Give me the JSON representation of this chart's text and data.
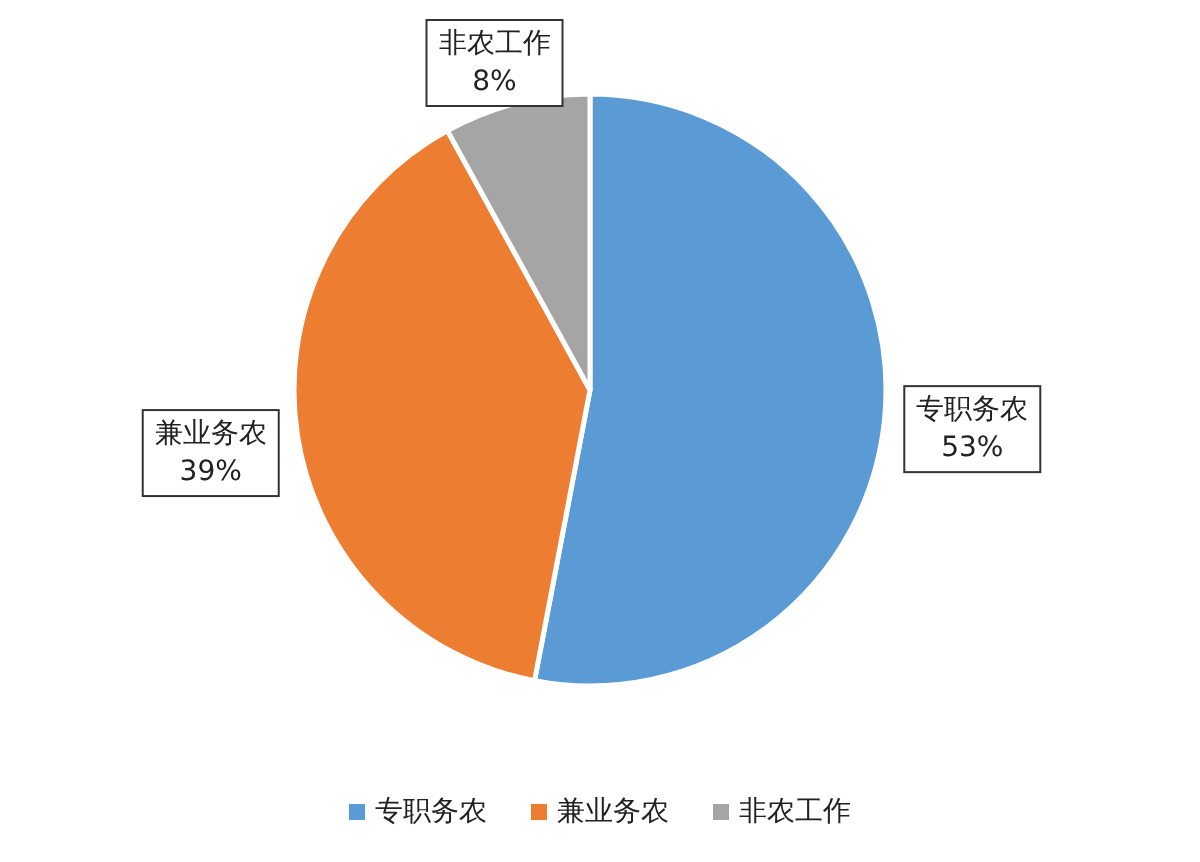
{
  "chart_data": {
    "type": "pie",
    "categories": [
      "专职务农",
      "兼业务农",
      "非农工作"
    ],
    "values": [
      53,
      39,
      8
    ],
    "colors": [
      "#5b9bd5",
      "#ed7d31",
      "#a5a5a5"
    ],
    "value_labels": [
      "53%",
      "39%",
      "8%"
    ],
    "legend": "bottom"
  }
}
